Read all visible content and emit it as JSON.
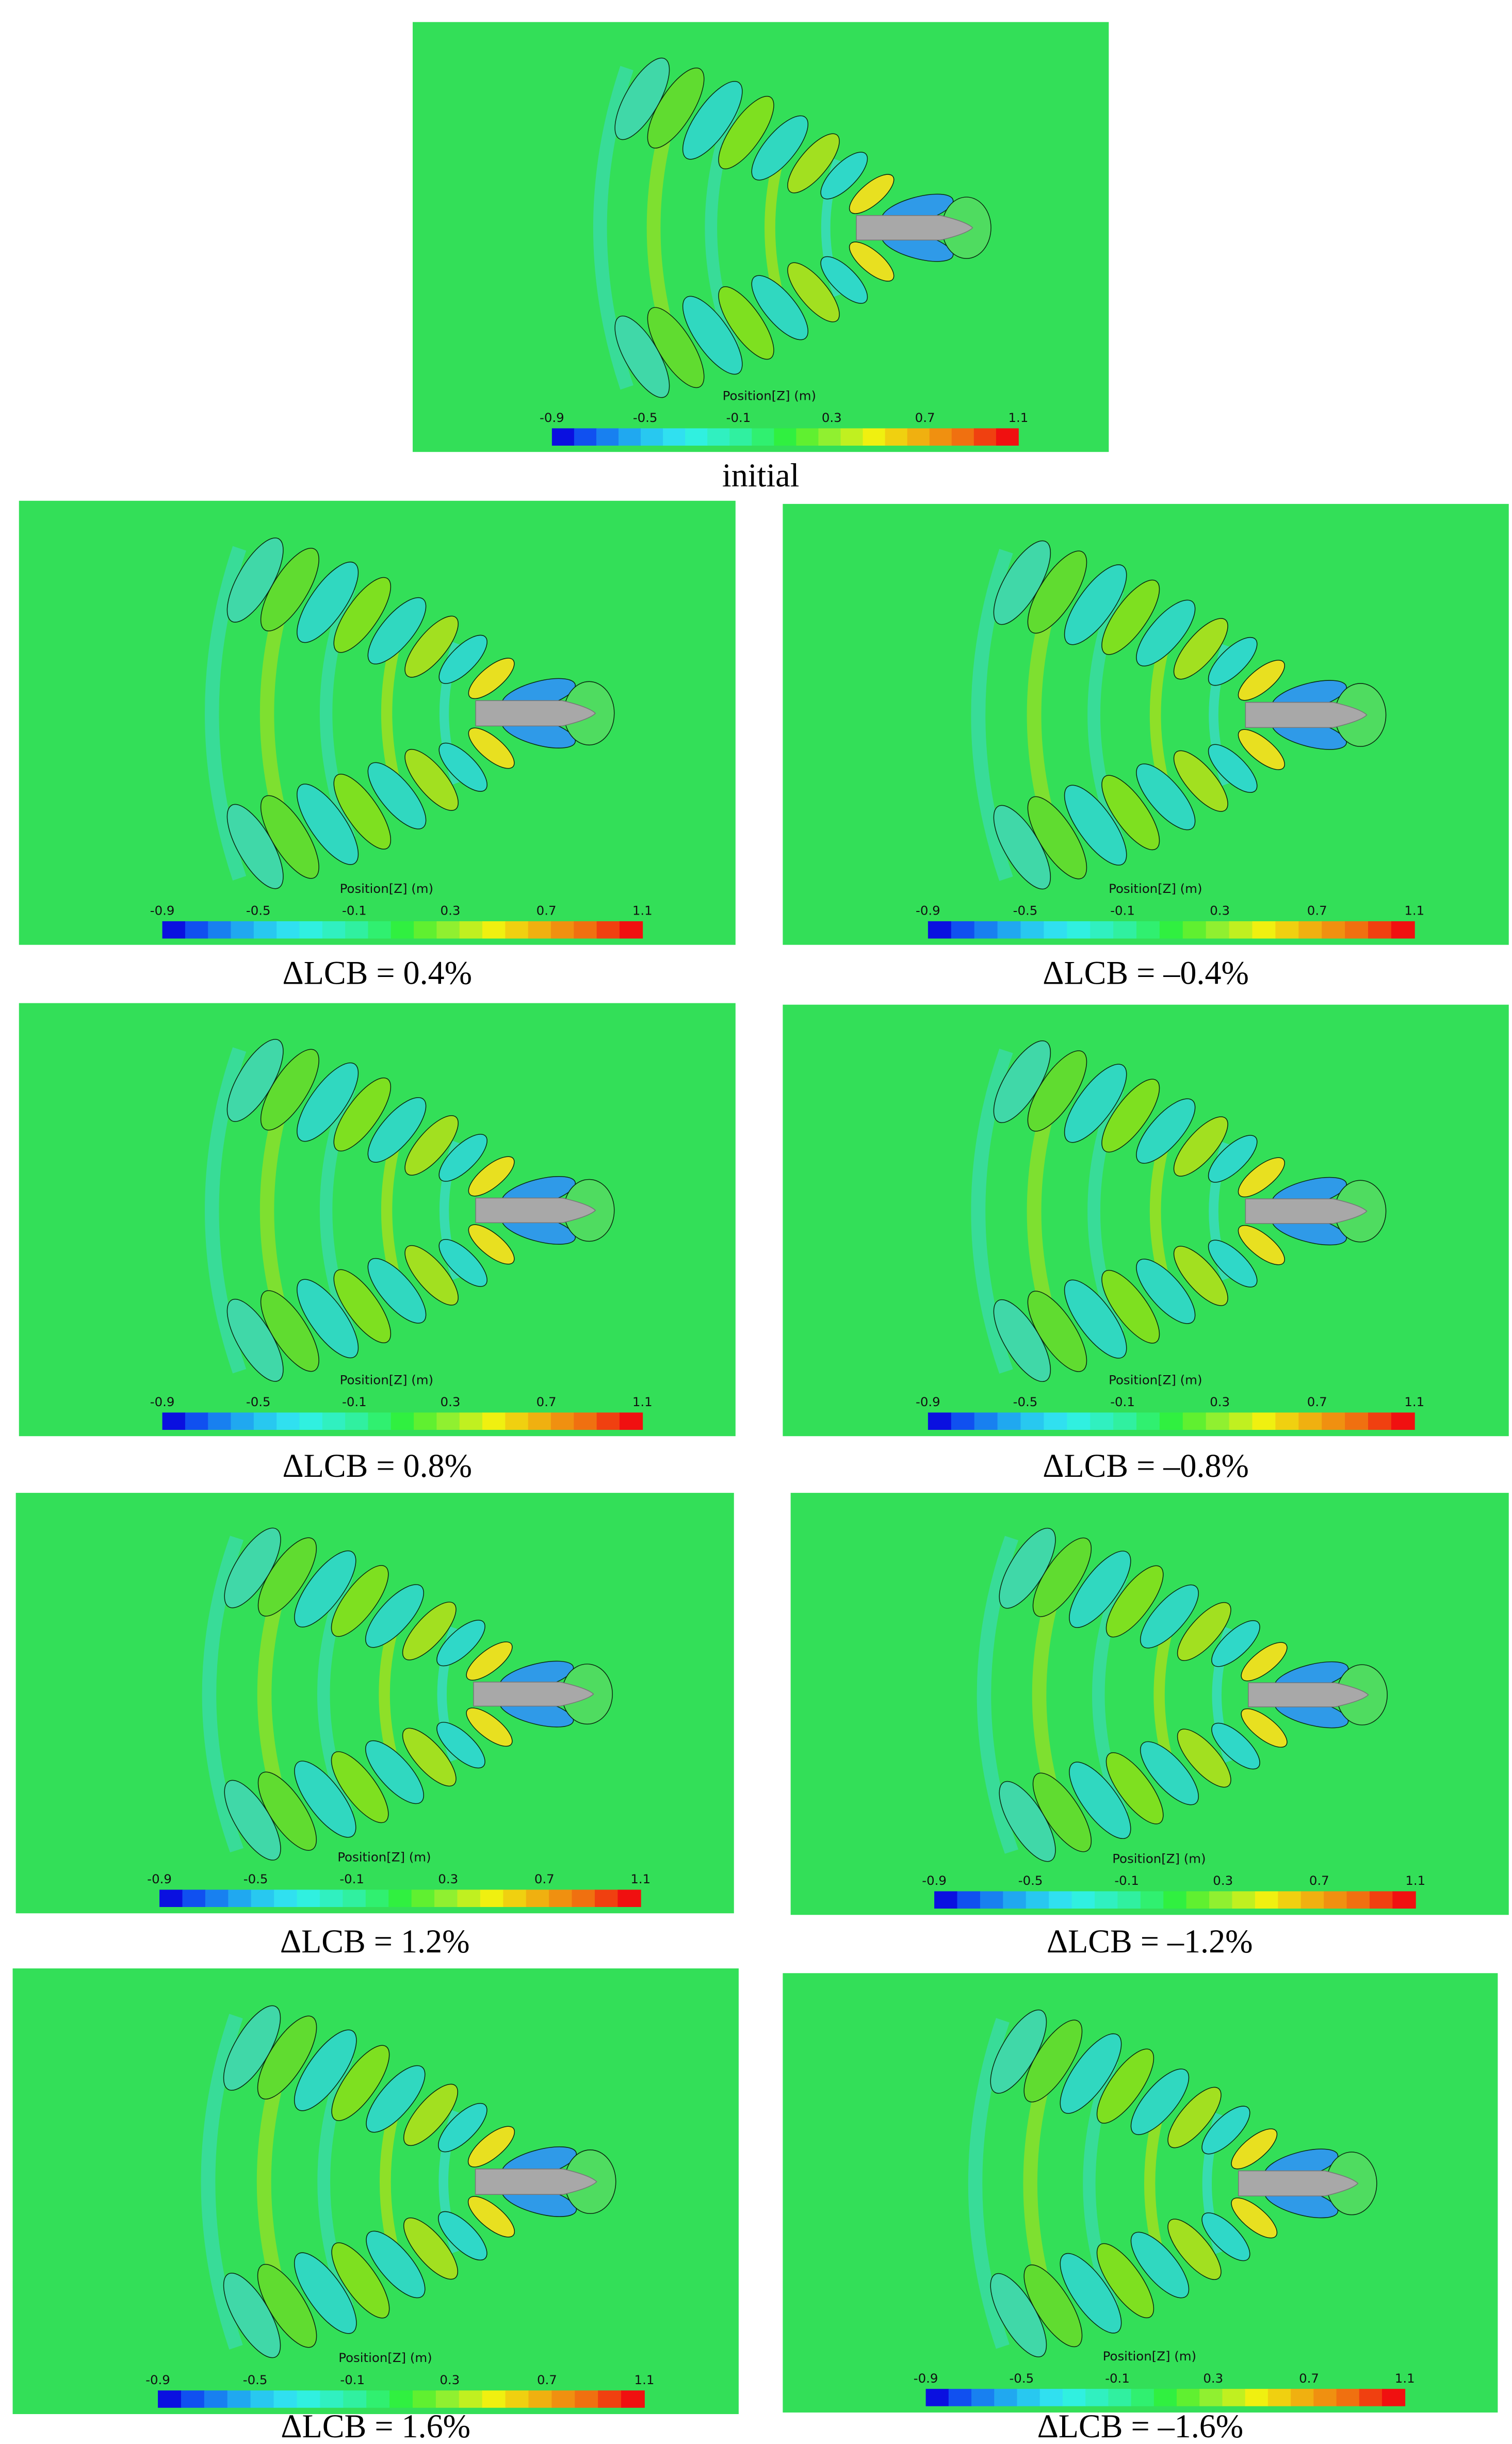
{
  "panels": [
    {
      "caption": "initial",
      "colorbar": {
        "title": "Position[Z] (m)",
        "ticks": [
          -0.9,
          -0.5,
          -0.1,
          0.3,
          0.7,
          1.1
        ]
      }
    },
    {
      "caption": "ΔLCB = 0.4%",
      "colorbar": {
        "title": "Position[Z] (m)",
        "ticks": [
          -0.9,
          -0.5,
          -0.1,
          0.3,
          0.7,
          1.1
        ]
      }
    },
    {
      "caption": "ΔLCB = –0.4%",
      "colorbar": {
        "title": "Position[Z] (m)",
        "ticks": [
          -0.9,
          -0.5,
          -0.1,
          0.3,
          0.7,
          1.1
        ]
      }
    },
    {
      "caption": "ΔLCB = 0.8%",
      "colorbar": {
        "title": "Position[Z] (m)",
        "ticks": [
          -0.9,
          -0.5,
          -0.1,
          0.3,
          0.7,
          1.1
        ]
      }
    },
    {
      "caption": "ΔLCB = –0.8%",
      "colorbar": {
        "title": "Position[Z] (m)",
        "ticks": [
          -0.9,
          -0.5,
          -0.1,
          0.3,
          0.7,
          1.1
        ]
      }
    },
    {
      "caption": "ΔLCB = 1.2%",
      "colorbar": {
        "title": "Position[Z] (m)",
        "ticks": [
          -0.9,
          -0.5,
          -0.1,
          0.3,
          0.7,
          1.1
        ]
      }
    },
    {
      "caption": "ΔLCB = –1.2%",
      "colorbar": {
        "title": "Position[Z] (m)",
        "ticks": [
          -0.9,
          -0.5,
          -0.1,
          0.3,
          0.7,
          1.1
        ]
      }
    },
    {
      "caption": "ΔLCB = 1.6%",
      "colorbar": {
        "title": "Position[Z] (m)",
        "ticks": [
          -0.9,
          -0.5,
          -0.1,
          0.3,
          0.7,
          1.1
        ]
      }
    },
    {
      "caption": "ΔLCB = –1.6%",
      "colorbar": {
        "title": "Position[Z] (m)",
        "ticks": [
          -0.9,
          -0.5,
          -0.1,
          0.3,
          0.7,
          1.1
        ]
      }
    }
  ]
}
